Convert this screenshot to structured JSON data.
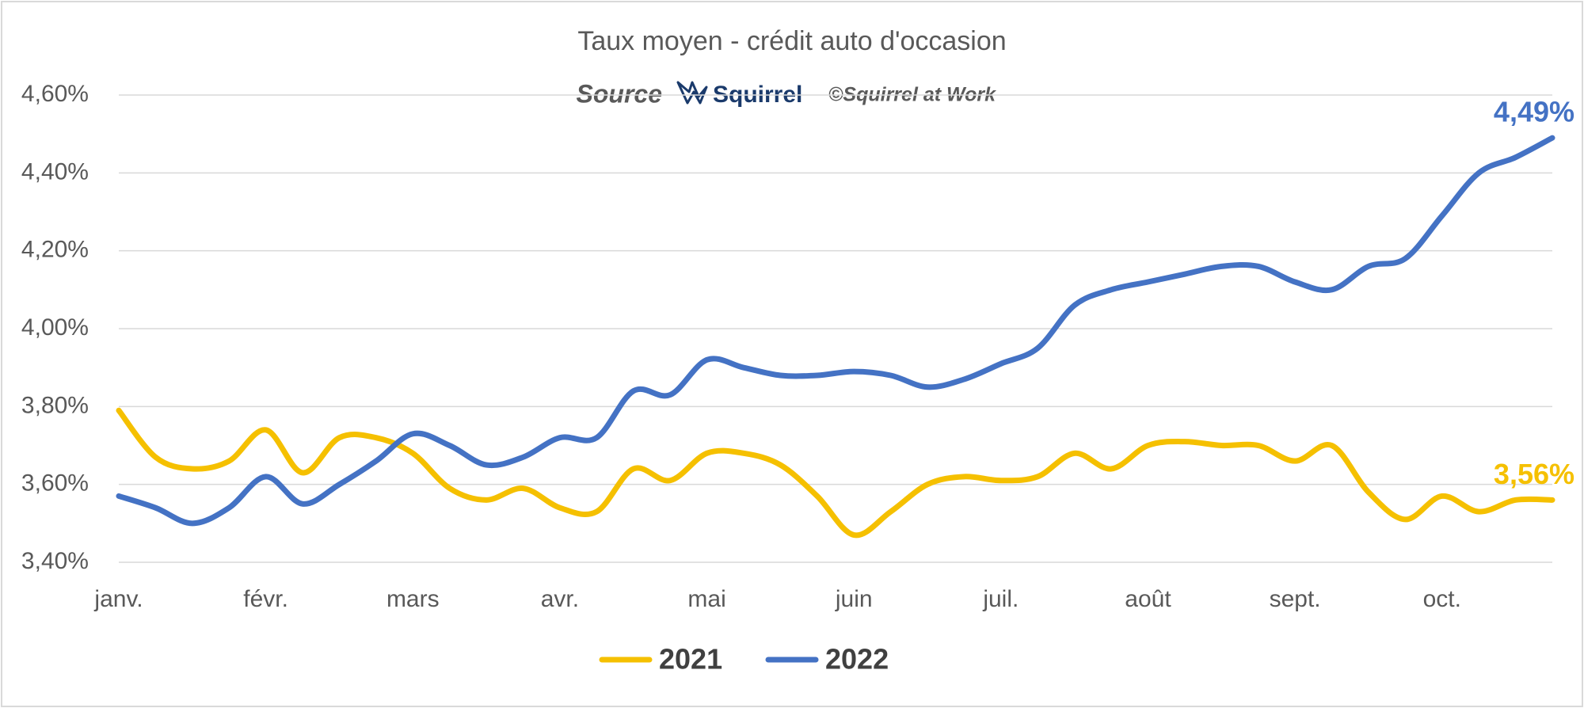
{
  "chart_data": {
    "type": "line",
    "title": "Taux moyen - crédit auto d'occasion",
    "subtitle": {
      "source": "Source",
      "logo": "Squirrel",
      "credit": "©Squirrel at Work"
    },
    "categories": [
      "janv.",
      null,
      null,
      null,
      "févr.",
      null,
      null,
      null,
      "mars",
      null,
      null,
      null,
      "avr.",
      null,
      null,
      null,
      "mai",
      null,
      null,
      null,
      "juin",
      null,
      null,
      null,
      "juil.",
      null,
      null,
      null,
      "août",
      null,
      null,
      null,
      "sept.",
      null,
      null,
      null,
      "oct.",
      null,
      null,
      null
    ],
    "series": [
      {
        "name": "2021",
        "color": "#f5c000",
        "values": [
          3.79,
          3.67,
          3.64,
          3.66,
          3.74,
          3.63,
          3.72,
          3.72,
          3.68,
          3.59,
          3.56,
          3.59,
          3.54,
          3.53,
          3.64,
          3.61,
          3.68,
          3.68,
          3.65,
          3.57,
          3.47,
          3.53,
          3.6,
          3.62,
          3.61,
          3.62,
          3.68,
          3.64,
          3.7,
          3.71,
          3.7,
          3.7,
          3.66,
          3.7,
          3.58,
          3.51,
          3.57,
          3.53,
          3.56,
          3.56
        ],
        "last_label": "3,56%"
      },
      {
        "name": "2022",
        "color": "#4472c4",
        "values": [
          3.57,
          3.54,
          3.5,
          3.54,
          3.62,
          3.55,
          3.6,
          3.66,
          3.73,
          3.7,
          3.65,
          3.67,
          3.72,
          3.72,
          3.84,
          3.83,
          3.92,
          3.9,
          3.88,
          3.88,
          3.89,
          3.88,
          3.85,
          3.87,
          3.91,
          3.95,
          4.06,
          4.1,
          4.12,
          4.14,
          4.16,
          4.16,
          4.12,
          4.1,
          4.16,
          4.18,
          4.29,
          4.4,
          4.44,
          4.49
        ],
        "last_label": "4,49%"
      }
    ],
    "ylim": [
      3.4,
      4.6
    ],
    "yticks": [
      {
        "value": 3.4,
        "label": "3,40%"
      },
      {
        "value": 3.6,
        "label": "3,60%"
      },
      {
        "value": 3.8,
        "label": "3,80%"
      },
      {
        "value": 4.0,
        "label": "4,00%"
      },
      {
        "value": 4.2,
        "label": "4,20%"
      },
      {
        "value": 4.4,
        "label": "4,40%"
      },
      {
        "value": 4.6,
        "label": "4,60%"
      }
    ],
    "grid": true,
    "legend": "bottom"
  }
}
